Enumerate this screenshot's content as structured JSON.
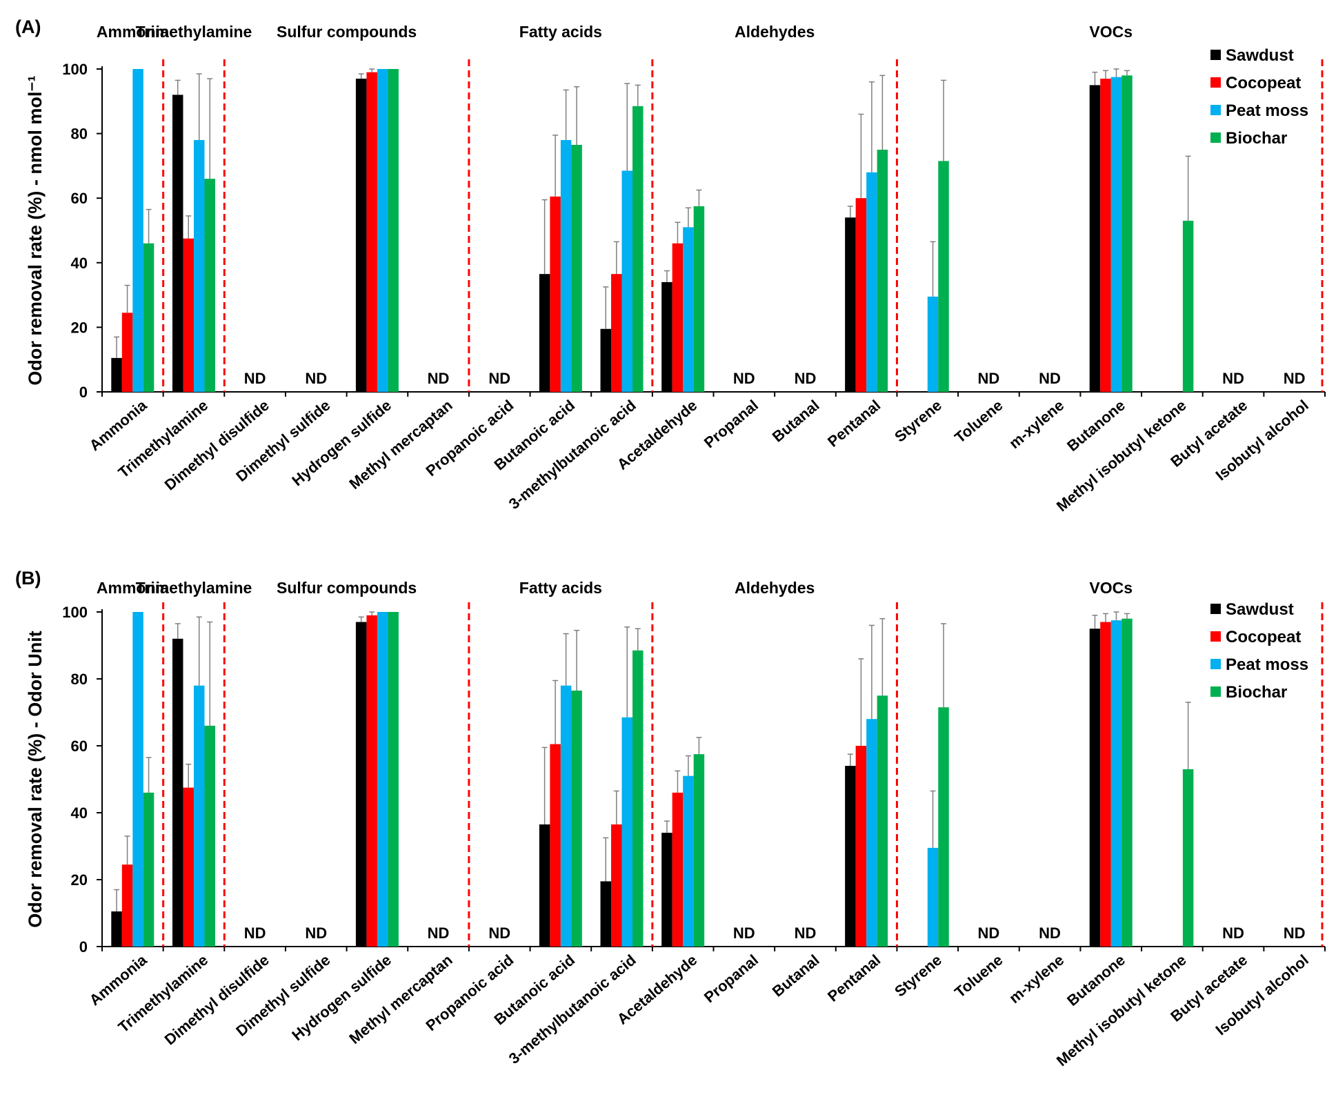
{
  "colors": {
    "Sawdust": "#000000",
    "Cocopeat": "#ff0000",
    "Peat moss": "#00b0f0",
    "Biochar": "#00b050",
    "divider": "#ff0000",
    "errorbar": "#7f7f7f"
  },
  "nd_label": "ND",
  "chart_data": [
    {
      "type": "bar",
      "panel_label": "(A)",
      "ylabel": "Odor removal rate (%) - nmol mol⁻¹",
      "ylim": [
        0,
        100
      ],
      "yticks": [
        0,
        20,
        40,
        60,
        80,
        100
      ],
      "legend": [
        "Sawdust",
        "Cocopeat",
        "Peat moss",
        "Biochar"
      ],
      "legend_position": "top-right",
      "groups": [
        {
          "label": "Ammonia",
          "categories": [
            "Ammonia"
          ]
        },
        {
          "label": "Trimethylamine",
          "categories": [
            "Trimethylamine"
          ]
        },
        {
          "label": "Sulfur compounds",
          "categories": [
            "Dimethyl disulfide",
            "Dimethyl sulfide",
            "Hydrogen sulfide",
            "Methyl mercaptan"
          ]
        },
        {
          "label": "Fatty acids",
          "categories": [
            "Propanoic acid",
            "Butanoic acid",
            "3-methylbutanoic acid"
          ]
        },
        {
          "label": "Aldehydes",
          "categories": [
            "Acetaldehyde",
            "Propanal",
            "Butanal",
            "Pentanal"
          ]
        },
        {
          "label": "VOCs",
          "categories": [
            "Styrene",
            "Toluene",
            "m-xylene",
            "Butanone",
            "Methyl isobutyl ketone",
            "Butyl acetate",
            "Isobutyl alcohol"
          ]
        }
      ],
      "categories": [
        "Ammonia",
        "Trimethylamine",
        "Dimethyl disulfide",
        "Dimethyl sulfide",
        "Hydrogen sulfide",
        "Methyl mercaptan",
        "Propanoic acid",
        "Butanoic acid",
        "3-methylbutanoic acid",
        "Acetaldehyde",
        "Propanal",
        "Butanal",
        "Pentanal",
        "Styrene",
        "Toluene",
        "m-xylene",
        "Butanone",
        "Methyl isobutyl ketone",
        "Butyl acetate",
        "Isobutyl alcohol"
      ],
      "nd_categories": [
        "Dimethyl disulfide",
        "Dimethyl sulfide",
        "Methyl mercaptan",
        "Propanoic acid",
        "Propanal",
        "Butanal",
        "Toluene",
        "m-xylene",
        "Butyl acetate",
        "Isobutyl alcohol"
      ],
      "series": [
        {
          "name": "Sawdust",
          "values": [
            10.5,
            92,
            null,
            null,
            97,
            null,
            null,
            36.5,
            19.5,
            34,
            null,
            null,
            54,
            null,
            null,
            null,
            95,
            null,
            null,
            null
          ],
          "errors": [
            6.5,
            4.5,
            null,
            null,
            1.5,
            null,
            null,
            23,
            13,
            3.5,
            null,
            null,
            3.5,
            null,
            null,
            null,
            4,
            null,
            null,
            null
          ]
        },
        {
          "name": "Cocopeat",
          "values": [
            24.5,
            47.5,
            null,
            null,
            99,
            null,
            null,
            60.5,
            36.5,
            46,
            null,
            null,
            60,
            null,
            null,
            null,
            97,
            null,
            null,
            null
          ],
          "errors": [
            8.5,
            7,
            null,
            null,
            1,
            null,
            null,
            19,
            10,
            6.5,
            null,
            null,
            26,
            null,
            null,
            null,
            2.5,
            null,
            null,
            null
          ]
        },
        {
          "name": "Peat moss",
          "values": [
            100,
            78,
            null,
            null,
            100,
            null,
            null,
            78,
            68.5,
            51,
            null,
            null,
            68,
            29.5,
            null,
            null,
            97.5,
            null,
            null,
            null
          ],
          "errors": [
            0,
            20.5,
            null,
            null,
            0,
            null,
            null,
            15.5,
            27,
            6,
            null,
            null,
            28,
            17,
            null,
            null,
            2.5,
            null,
            null,
            null
          ]
        },
        {
          "name": "Biochar",
          "values": [
            46,
            66,
            null,
            null,
            100,
            null,
            null,
            76.5,
            88.5,
            57.5,
            null,
            null,
            75,
            71.5,
            null,
            null,
            98,
            53,
            null,
            null
          ],
          "errors": [
            10.5,
            31,
            null,
            null,
            0,
            null,
            null,
            18,
            6.5,
            5,
            null,
            null,
            23,
            25,
            null,
            null,
            1.5,
            20,
            null,
            null
          ]
        }
      ]
    },
    {
      "type": "bar",
      "panel_label": "(B)",
      "ylabel": "Odor removal rate (%) - Odor Unit",
      "ylim": [
        0,
        100
      ],
      "yticks": [
        0,
        20,
        40,
        60,
        80,
        100
      ],
      "legend": [
        "Sawdust",
        "Cocopeat",
        "Peat moss",
        "Biochar"
      ],
      "legend_position": "top-right",
      "groups": [
        {
          "label": "Ammonia",
          "categories": [
            "Ammonia"
          ]
        },
        {
          "label": "Trimethylamine",
          "categories": [
            "Trimethylamine"
          ]
        },
        {
          "label": "Sulfur compounds",
          "categories": [
            "Dimethyl disulfide",
            "Dimethyl sulfide",
            "Hydrogen sulfide",
            "Methyl mercaptan"
          ]
        },
        {
          "label": "Fatty acids",
          "categories": [
            "Propanoic acid",
            "Butanoic acid",
            "3-methylbutanoic acid"
          ]
        },
        {
          "label": "Aldehydes",
          "categories": [
            "Acetaldehyde",
            "Propanal",
            "Butanal",
            "Pentanal"
          ]
        },
        {
          "label": "VOCs",
          "categories": [
            "Styrene",
            "Toluene",
            "m-xylene",
            "Butanone",
            "Methyl isobutyl ketone",
            "Butyl acetate",
            "Isobutyl alcohol"
          ]
        }
      ],
      "categories": [
        "Ammonia",
        "Trimethylamine",
        "Dimethyl disulfide",
        "Dimethyl sulfide",
        "Hydrogen sulfide",
        "Methyl mercaptan",
        "Propanoic acid",
        "Butanoic acid",
        "3-methylbutanoic acid",
        "Acetaldehyde",
        "Propanal",
        "Butanal",
        "Pentanal",
        "Styrene",
        "Toluene",
        "m-xylene",
        "Butanone",
        "Methyl isobutyl ketone",
        "Butyl acetate",
        "Isobutyl alcohol"
      ],
      "nd_categories": [
        "Dimethyl disulfide",
        "Dimethyl sulfide",
        "Methyl mercaptan",
        "Propanoic acid",
        "Propanal",
        "Butanal",
        "Toluene",
        "m-xylene",
        "Butyl acetate",
        "Isobutyl alcohol"
      ],
      "series": [
        {
          "name": "Sawdust",
          "values": [
            10.5,
            92,
            null,
            null,
            97,
            null,
            null,
            36.5,
            19.5,
            34,
            null,
            null,
            54,
            null,
            null,
            null,
            95,
            null,
            null,
            null
          ],
          "errors": [
            6.5,
            4.5,
            null,
            null,
            1.5,
            null,
            null,
            23,
            13,
            3.5,
            null,
            null,
            3.5,
            null,
            null,
            null,
            4,
            null,
            null,
            null
          ]
        },
        {
          "name": "Cocopeat",
          "values": [
            24.5,
            47.5,
            null,
            null,
            99,
            null,
            null,
            60.5,
            36.5,
            46,
            null,
            null,
            60,
            null,
            null,
            null,
            97,
            null,
            null,
            null
          ],
          "errors": [
            8.5,
            7,
            null,
            null,
            1,
            null,
            null,
            19,
            10,
            6.5,
            null,
            null,
            26,
            null,
            null,
            null,
            2.5,
            null,
            null,
            null
          ]
        },
        {
          "name": "Peat moss",
          "values": [
            100,
            78,
            null,
            null,
            100,
            null,
            null,
            78,
            68.5,
            51,
            null,
            null,
            68,
            29.5,
            null,
            null,
            97.5,
            null,
            null,
            null
          ],
          "errors": [
            0,
            20.5,
            null,
            null,
            0,
            null,
            null,
            15.5,
            27,
            6,
            null,
            null,
            28,
            17,
            null,
            null,
            2.5,
            null,
            null,
            null
          ]
        },
        {
          "name": "Biochar",
          "values": [
            46,
            66,
            null,
            null,
            100,
            null,
            null,
            76.5,
            88.5,
            57.5,
            null,
            null,
            75,
            71.5,
            null,
            null,
            98,
            53,
            null,
            null
          ],
          "errors": [
            10.5,
            31,
            null,
            null,
            0,
            null,
            null,
            18,
            6.5,
            5,
            null,
            null,
            23,
            25,
            null,
            null,
            1.5,
            20,
            null,
            null
          ]
        }
      ]
    }
  ]
}
